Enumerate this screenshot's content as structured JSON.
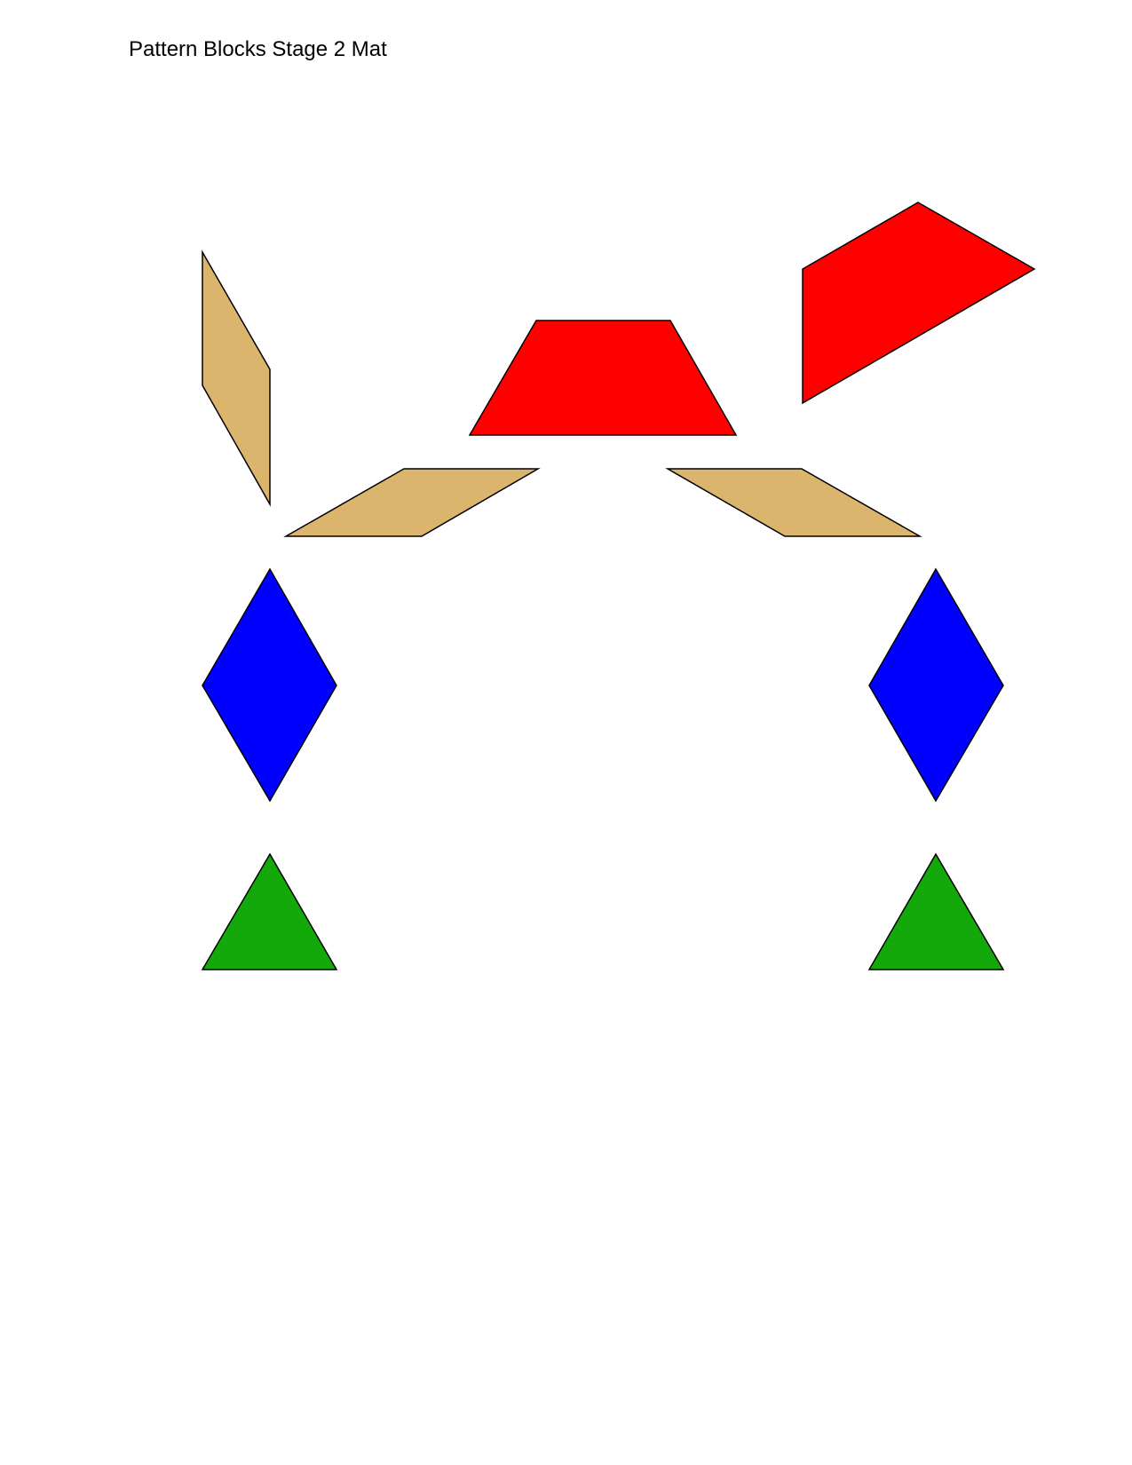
{
  "page": {
    "title": "Pattern Blocks Stage 2 Mat"
  },
  "colors": {
    "tan_rhombus": "#DBB46E",
    "red_trapezoid": "#FF0000",
    "blue_rhombus": "#0000FF",
    "green_triangle": "#14A90A",
    "outline": "#000000",
    "background": "#FFFFFF"
  },
  "blocks": [
    {
      "name": "tan-rhombus-upper-left",
      "shape": "tan rhombus",
      "color": "tan_rhombus"
    },
    {
      "name": "red-trapezoid-center",
      "shape": "red trapezoid",
      "color": "red_trapezoid"
    },
    {
      "name": "red-trapezoid-upper-right",
      "shape": "red trapezoid",
      "color": "red_trapezoid"
    },
    {
      "name": "tan-rhombus-left",
      "shape": "tan rhombus",
      "color": "tan_rhombus"
    },
    {
      "name": "tan-rhombus-right",
      "shape": "tan rhombus",
      "color": "tan_rhombus"
    },
    {
      "name": "blue-rhombus-left",
      "shape": "blue rhombus",
      "color": "blue_rhombus"
    },
    {
      "name": "blue-rhombus-right",
      "shape": "blue rhombus",
      "color": "blue_rhombus"
    },
    {
      "name": "green-triangle-left",
      "shape": "green triangle",
      "color": "green_triangle"
    },
    {
      "name": "green-triangle-right",
      "shape": "green triangle",
      "color": "green_triangle"
    }
  ]
}
